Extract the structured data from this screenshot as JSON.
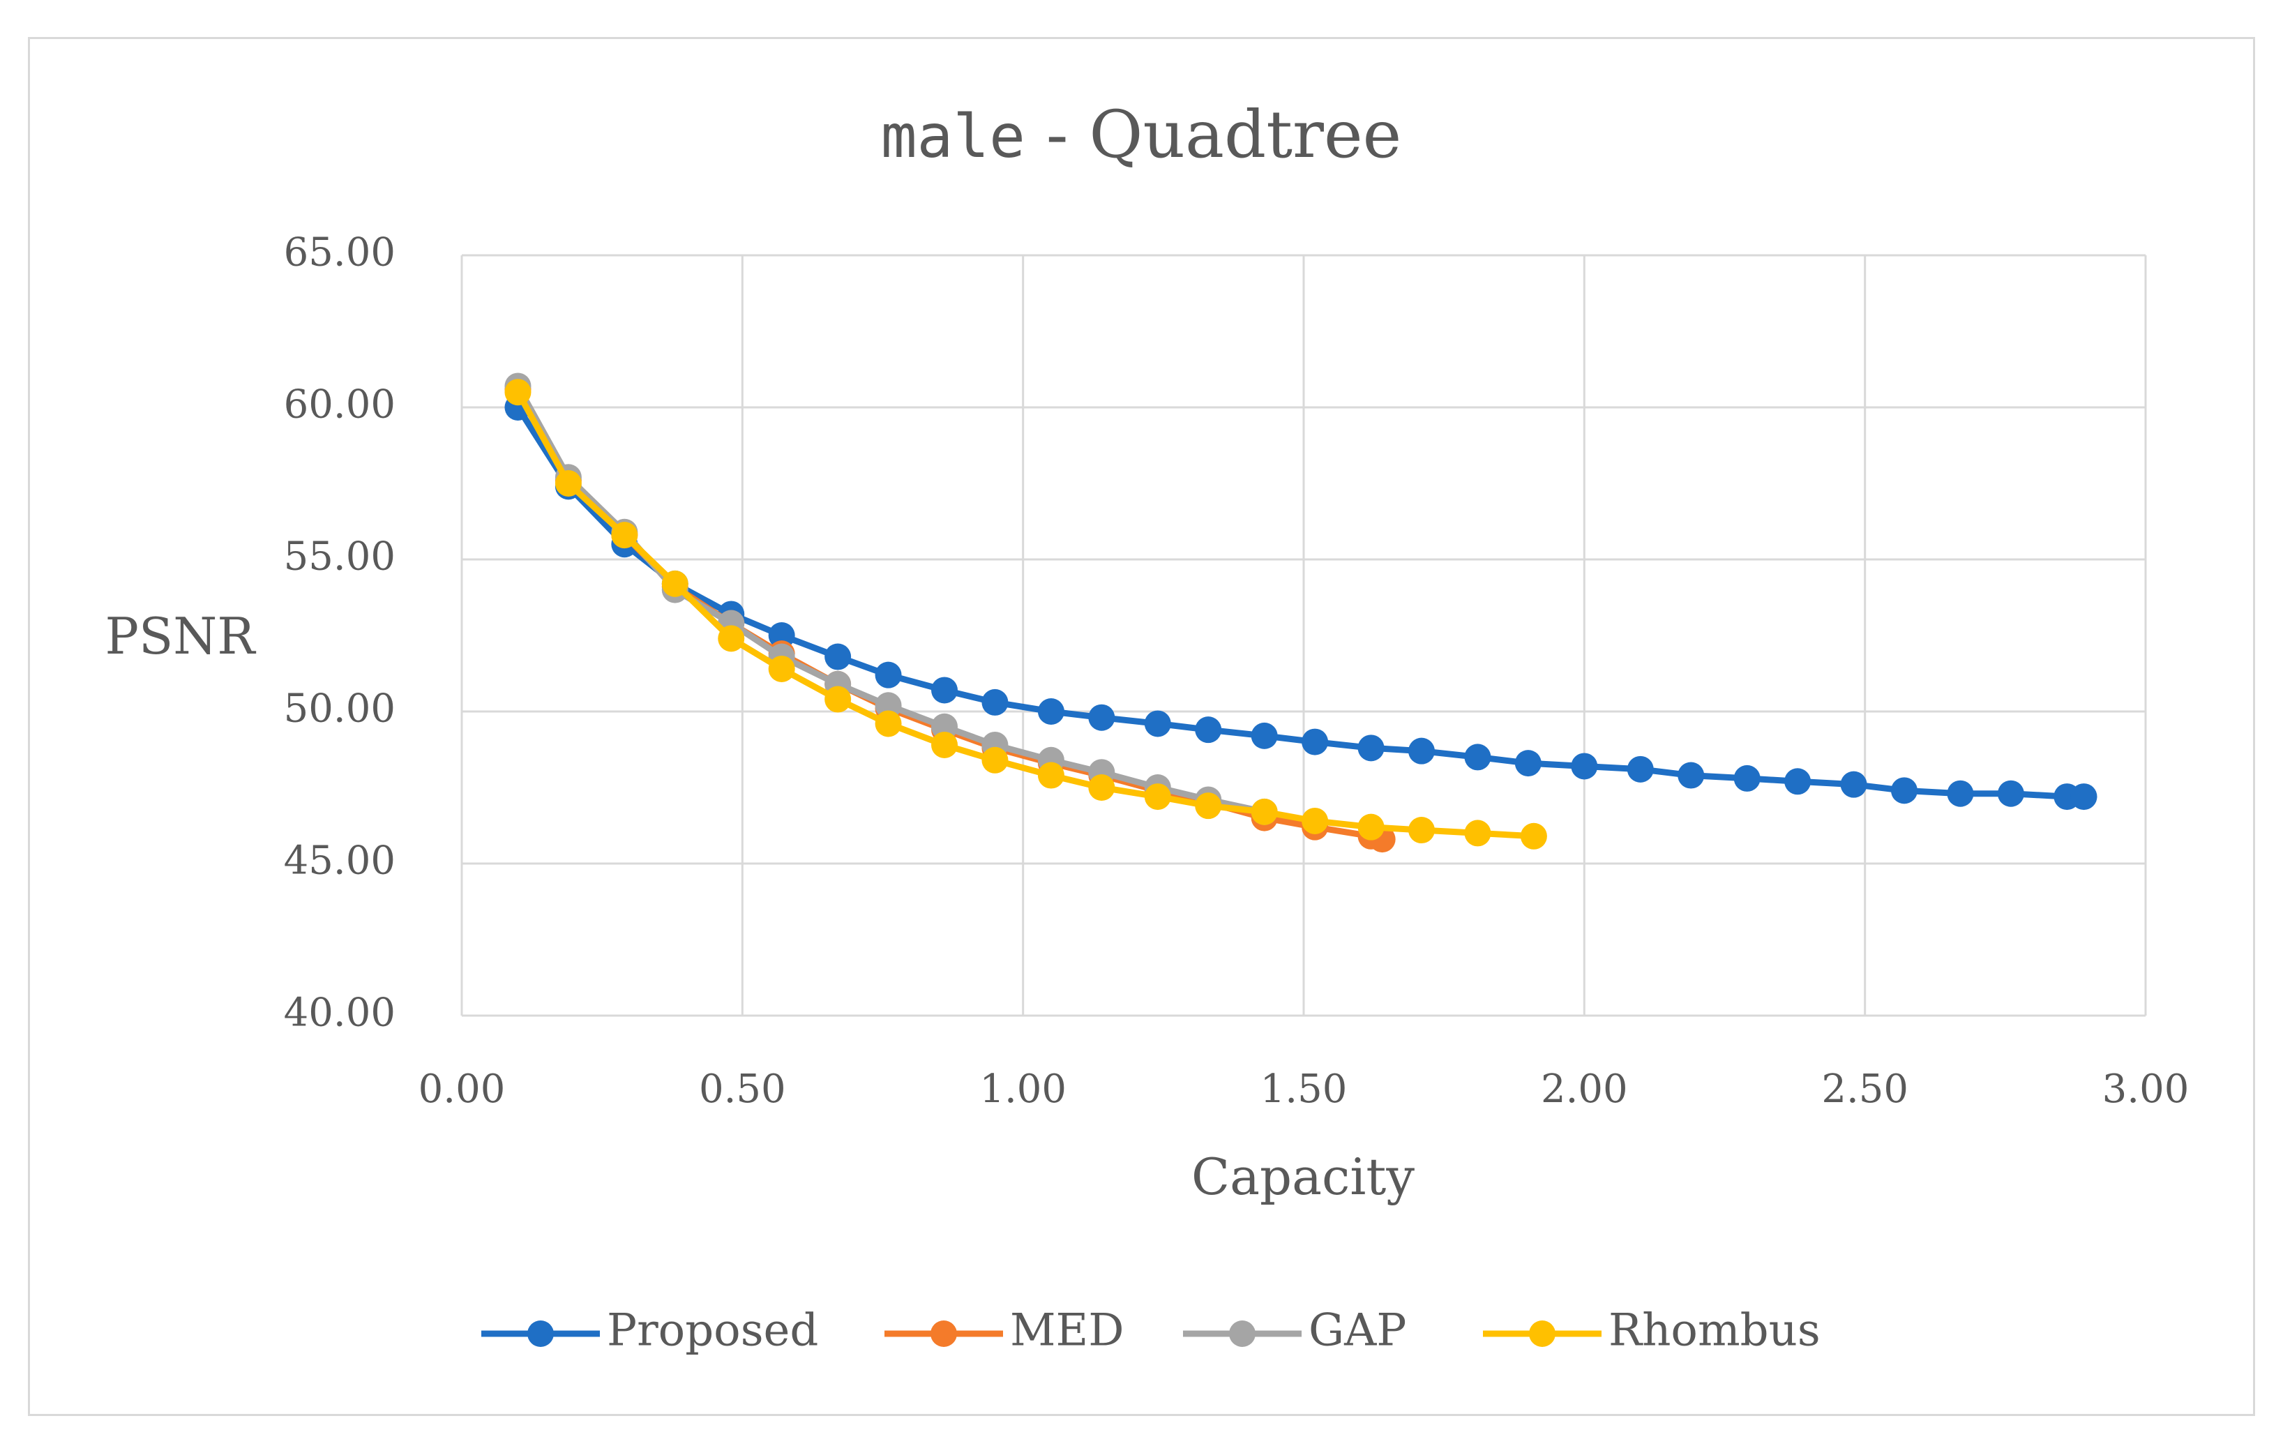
{
  "chart_data": {
    "type": "line",
    "title": {
      "mono": "male",
      "rest": " - Quadtree"
    },
    "xlabel": "Capacity",
    "ylabel": "PSNR",
    "xlim": [
      0,
      3
    ],
    "ylim": [
      40,
      65
    ],
    "xticks": [
      "0.00",
      "0.50",
      "1.00",
      "1.50",
      "2.00",
      "2.50",
      "3.00"
    ],
    "yticks": [
      "40.00",
      "45.00",
      "50.00",
      "55.00",
      "60.00",
      "65.00"
    ],
    "grid": true,
    "legend_position": "bottom",
    "series": [
      {
        "name": "Proposed",
        "color": "#1f6fc5",
        "x": [
          0.1,
          0.19,
          0.29,
          0.38,
          0.48,
          0.57,
          0.67,
          0.76,
          0.86,
          0.95,
          1.05,
          1.14,
          1.24,
          1.33,
          1.43,
          1.52,
          1.62,
          1.71,
          1.81,
          1.9,
          2.0,
          2.1,
          2.19,
          2.29,
          2.38,
          2.48,
          2.57,
          2.67,
          2.76,
          2.86,
          2.89
        ],
        "y": [
          60.0,
          57.4,
          55.5,
          54.2,
          53.2,
          52.5,
          51.8,
          51.2,
          50.7,
          50.3,
          50.0,
          49.8,
          49.6,
          49.4,
          49.2,
          49.0,
          48.8,
          48.7,
          48.5,
          48.3,
          48.2,
          48.1,
          47.9,
          47.8,
          47.7,
          47.6,
          47.4,
          47.3,
          47.3,
          47.2,
          47.2
        ]
      },
      {
        "name": "MED",
        "color": "#f47b2a",
        "x": [
          0.1,
          0.19,
          0.29,
          0.38,
          0.48,
          0.57,
          0.67,
          0.76,
          0.86,
          0.95,
          1.05,
          1.14,
          1.24,
          1.33,
          1.43,
          1.52,
          1.62,
          1.64
        ],
        "y": [
          60.6,
          57.6,
          55.8,
          54.1,
          52.9,
          51.9,
          50.9,
          50.1,
          49.4,
          48.8,
          48.3,
          47.9,
          47.4,
          47.0,
          46.5,
          46.2,
          45.9,
          45.8
        ]
      },
      {
        "name": "GAP",
        "color": "#a5a5a5",
        "x": [
          0.1,
          0.19,
          0.29,
          0.38,
          0.48,
          0.57,
          0.67,
          0.76,
          0.86,
          0.95,
          1.05,
          1.14,
          1.24,
          1.33,
          1.43
        ],
        "y": [
          60.7,
          57.7,
          55.9,
          54.0,
          52.9,
          51.8,
          50.9,
          50.2,
          49.5,
          48.9,
          48.4,
          48.0,
          47.5,
          47.1,
          46.7
        ]
      },
      {
        "name": "Rhombus",
        "color": "#ffc000",
        "x": [
          0.1,
          0.19,
          0.29,
          0.38,
          0.48,
          0.57,
          0.67,
          0.76,
          0.86,
          0.95,
          1.05,
          1.14,
          1.24,
          1.33,
          1.43,
          1.52,
          1.62,
          1.71,
          1.81,
          1.91
        ],
        "y": [
          60.5,
          57.5,
          55.8,
          54.2,
          52.4,
          51.4,
          50.4,
          49.6,
          48.9,
          48.4,
          47.9,
          47.5,
          47.2,
          46.9,
          46.7,
          46.4,
          46.2,
          46.1,
          46.0,
          45.9
        ]
      }
    ]
  }
}
